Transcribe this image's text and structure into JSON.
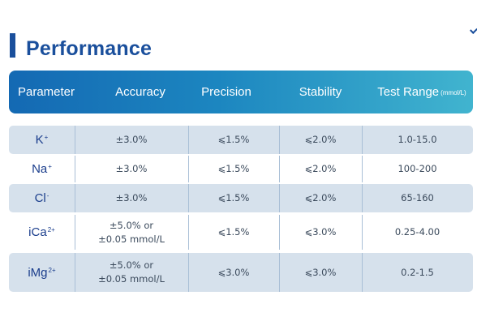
{
  "title": "Performance",
  "header": {
    "parameter": "Parameter",
    "accuracy": "Accuracy",
    "precision": "Precision",
    "stability": "Stability",
    "test_range": "Test Range",
    "test_range_unit": "(mmol/L)"
  },
  "rows": [
    {
      "ion": "K",
      "charge": "+",
      "accuracy": [
        "±3.0%"
      ],
      "precision": "⩽1.5%",
      "stability": "⩽2.0%",
      "range": "1.0-15.0"
    },
    {
      "ion": "Na",
      "charge": "+",
      "accuracy": [
        "±3.0%"
      ],
      "precision": "⩽1.5%",
      "stability": "⩽2.0%",
      "range": "100-200"
    },
    {
      "ion": "Cl",
      "charge": "-",
      "accuracy": [
        "±3.0%"
      ],
      "precision": "⩽1.5%",
      "stability": "⩽2.0%",
      "range": "65-160"
    },
    {
      "ion": "iCa",
      "charge": "2+",
      "accuracy": [
        "±5.0% or",
        "±0.05 mmol/L"
      ],
      "precision": "⩽1.5%",
      "stability": "⩽3.0%",
      "range": "0.25-4.00"
    },
    {
      "ion": "iMg",
      "charge": "2+",
      "accuracy": [
        "±5.0% or",
        "±0.05 mmol/L"
      ],
      "precision": "⩽3.0%",
      "stability": "⩽3.0%",
      "range": "0.2-1.5"
    }
  ],
  "colors": {
    "title": "#1a4f9c",
    "header_start": "#1469b3",
    "header_end": "#41b4cf",
    "row_shade": "#d6e1ec",
    "param_text": "#1a3d8c"
  }
}
